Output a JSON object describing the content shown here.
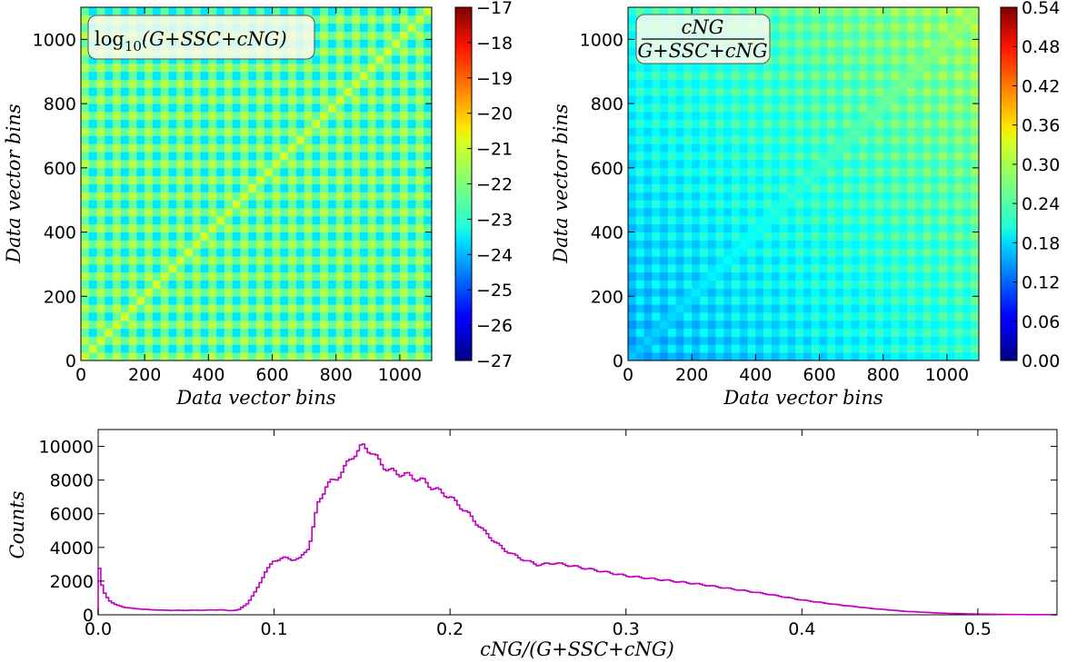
{
  "chart_data": [
    {
      "type": "heatmap",
      "annotation": {
        "prefix": "log",
        "sub": "10",
        "body": "(G+SSC+cNG)"
      },
      "xlabel": "Data vector bins",
      "ylabel": "Data vector bins",
      "xlim": [
        0,
        1100
      ],
      "ylim": [
        0,
        1100
      ],
      "xticks": [
        0,
        200,
        400,
        600,
        800,
        1000
      ],
      "yticks": [
        0,
        200,
        400,
        600,
        800,
        1000
      ],
      "colorbar": {
        "range": [
          -27,
          -17
        ],
        "ticks": [
          -27,
          -26,
          -25,
          -24,
          -23,
          -22,
          -21,
          -20,
          -19,
          -18,
          -17
        ],
        "colormap": "jet"
      },
      "pattern": {
        "block_grid": 44,
        "base_value": -21.6,
        "diagonal_value": -21.2,
        "low_value": -23.5
      }
    },
    {
      "type": "heatmap",
      "annotation": {
        "numerator": "cNG",
        "denominator": "G+SSC+cNG"
      },
      "xlabel": "Data vector bins",
      "ylabel": "Data vector bins",
      "xlim": [
        0,
        1100
      ],
      "ylim": [
        0,
        1100
      ],
      "xticks": [
        0,
        200,
        400,
        600,
        800,
        1000
      ],
      "yticks": [
        0,
        200,
        400,
        600,
        800,
        1000
      ],
      "colorbar": {
        "range": [
          0.0,
          0.54
        ],
        "ticks": [
          "0.00",
          "0.06",
          "0.12",
          "0.18",
          "0.24",
          "0.30",
          "0.36",
          "0.42",
          "0.48",
          "0.54"
        ],
        "colormap": "jet"
      },
      "pattern": {
        "block_grid": 44,
        "min_value": 0.14,
        "max_value": 0.26
      }
    },
    {
      "type": "histogram",
      "xlabel": "cNG/(G+SSC+cNG)",
      "ylabel": "Counts",
      "xlim": [
        0.0,
        0.545
      ],
      "ylim": [
        0,
        11000
      ],
      "xticks": [
        "0.0",
        "0.1",
        "0.2",
        "0.3",
        "0.4",
        "0.5"
      ],
      "yticks": [
        0,
        2000,
        4000,
        6000,
        8000,
        10000
      ],
      "color": "#c000c0",
      "x": [
        0.0,
        0.001,
        0.002,
        0.004,
        0.007,
        0.01,
        0.015,
        0.02,
        0.03,
        0.04,
        0.05,
        0.06,
        0.07,
        0.075,
        0.08,
        0.085,
        0.09,
        0.095,
        0.1,
        0.105,
        0.11,
        0.115,
        0.12,
        0.125,
        0.13,
        0.135,
        0.14,
        0.145,
        0.15,
        0.155,
        0.16,
        0.165,
        0.17,
        0.175,
        0.18,
        0.185,
        0.19,
        0.2,
        0.21,
        0.22,
        0.23,
        0.24,
        0.25,
        0.26,
        0.27,
        0.28,
        0.29,
        0.3,
        0.32,
        0.34,
        0.36,
        0.38,
        0.4,
        0.42,
        0.44,
        0.46,
        0.48,
        0.5,
        0.52,
        0.545
      ],
      "values": [
        2800,
        2700,
        1800,
        1200,
        800,
        600,
        450,
        380,
        300,
        270,
        270,
        280,
        300,
        250,
        300,
        700,
        1500,
        2600,
        3300,
        3500,
        3400,
        3450,
        4200,
        6800,
        8000,
        8300,
        9000,
        9800,
        10350,
        10100,
        9400,
        8900,
        8700,
        8600,
        8400,
        8200,
        7800,
        7200,
        6200,
        5000,
        4000,
        3400,
        3000,
        3100,
        2900,
        2700,
        2500,
        2300,
        2050,
        1800,
        1500,
        1200,
        850,
        580,
        360,
        190,
        90,
        40,
        15,
        5
      ]
    }
  ]
}
